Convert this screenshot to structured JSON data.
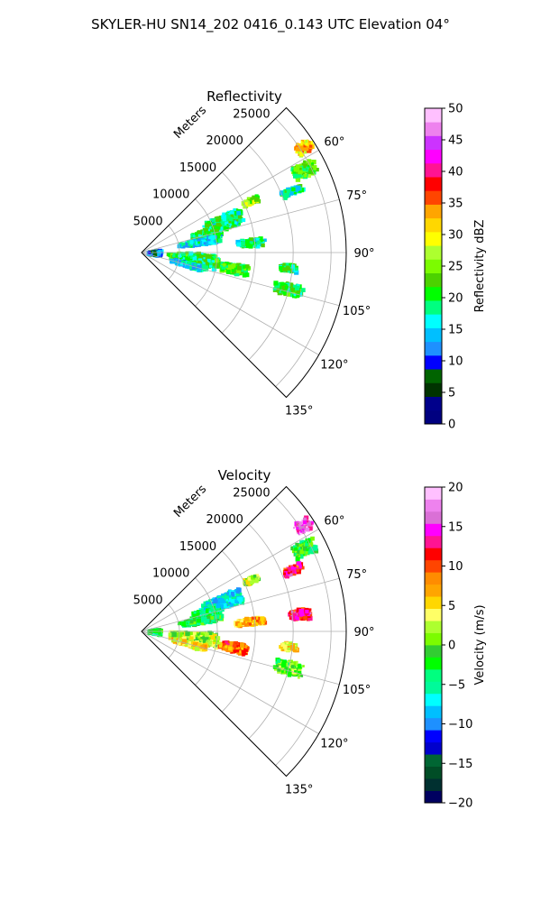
{
  "figure": {
    "suptitle": "SKYLER-HU  SN14_202  0416_0.143 UTC Elevation 04°"
  },
  "chart_data": [
    {
      "type": "heatmap",
      "subtype": "polar-sector",
      "title": "Reflectivity",
      "radial_axis_label": "Meters",
      "radial_ticks": [
        "5000",
        "10000",
        "15000",
        "20000",
        "25000"
      ],
      "radial_tick_values": [
        5000,
        10000,
        15000,
        20000,
        25000
      ],
      "rlim": [
        0,
        27000
      ],
      "angle_ticks": [
        "60°",
        "75°",
        "90°",
        "105°",
        "120°",
        "135°"
      ],
      "angle_tick_values": [
        60,
        75,
        90,
        105,
        120,
        135
      ],
      "theta_range": [
        45,
        135
      ],
      "grid": true,
      "colorbar": {
        "label": "Reflectivity dBZ",
        "ticks": [
          "0",
          "5",
          "10",
          "15",
          "20",
          "25",
          "30",
          "35",
          "40",
          "45",
          "50"
        ],
        "tick_values": [
          0,
          5,
          10,
          15,
          20,
          25,
          30,
          35,
          40,
          45,
          50
        ],
        "range": [
          0,
          50
        ],
        "position": "right"
      },
      "colors": [
        "#000080",
        "#00008b",
        "#003300",
        "#006400",
        "#0000ff",
        "#1e90ff",
        "#00bfff",
        "#00ffff",
        "#00ff80",
        "#00ff00",
        "#4cd200",
        "#7cfc00",
        "#adff2f",
        "#ffff00",
        "#ffd700",
        "#ffa500",
        "#ff4500",
        "#ff0000",
        "#ff1493",
        "#ff00ff",
        "#cc33ff",
        "#ee82ee",
        "#ffc0ff"
      ],
      "echo_regions": [
        {
          "az": 57,
          "r": 25500,
          "daz": 4,
          "dr": 2500,
          "value": 32
        },
        {
          "az": 63,
          "r": 24000,
          "daz": 5,
          "dr": 3500,
          "value": 22
        },
        {
          "az": 68,
          "r": 21500,
          "daz": 3,
          "dr": 3000,
          "value": 18
        },
        {
          "az": 65,
          "r": 16000,
          "daz": 3,
          "dr": 2500,
          "value": 25
        },
        {
          "az": 70,
          "r": 11500,
          "daz": 10,
          "dr": 5500,
          "value": 19
        },
        {
          "az": 74,
          "r": 9000,
          "daz": 8,
          "dr": 4500,
          "value": 20
        },
        {
          "az": 80,
          "r": 8000,
          "daz": 6,
          "dr": 6000,
          "value": 16
        },
        {
          "az": 85,
          "r": 14500,
          "daz": 4,
          "dr": 4000,
          "value": 18
        },
        {
          "az": 97,
          "r": 7000,
          "daz": 12,
          "dr": 7000,
          "value": 20
        },
        {
          "az": 100,
          "r": 12500,
          "daz": 6,
          "dr": 4000,
          "value": 22
        },
        {
          "az": 93,
          "r": 1800,
          "daz": 18,
          "dr": 1800,
          "value": 11
        },
        {
          "az": 105,
          "r": 6500,
          "daz": 6,
          "dr": 5000,
          "value": 15
        },
        {
          "az": 104,
          "r": 20000,
          "daz": 5,
          "dr": 4000,
          "value": 20
        },
        {
          "az": 96,
          "r": 19500,
          "daz": 3,
          "dr": 2500,
          "value": 19
        }
      ]
    },
    {
      "type": "heatmap",
      "subtype": "polar-sector",
      "title": "Velocity",
      "radial_axis_label": "Meters",
      "radial_ticks": [
        "5000",
        "10000",
        "15000",
        "20000",
        "25000"
      ],
      "radial_tick_values": [
        5000,
        10000,
        15000,
        20000,
        25000
      ],
      "rlim": [
        0,
        27000
      ],
      "angle_ticks": [
        "60°",
        "75°",
        "90°",
        "105°",
        "120°",
        "135°"
      ],
      "angle_tick_values": [
        60,
        75,
        90,
        105,
        120,
        135
      ],
      "theta_range": [
        45,
        135
      ],
      "grid": true,
      "colorbar": {
        "label": "Velocity (m/s)",
        "ticks": [
          "−20",
          "−15",
          "−10",
          "−5",
          "0",
          "5",
          "10",
          "15",
          "20"
        ],
        "tick_values": [
          -20,
          -15,
          -10,
          -5,
          0,
          5,
          10,
          15,
          20
        ],
        "range": [
          -20,
          20
        ],
        "position": "right"
      },
      "colors": [
        "#000060",
        "#003030",
        "#004d26",
        "#006633",
        "#0000cd",
        "#0000ff",
        "#1e90ff",
        "#00bfff",
        "#00ffff",
        "#00fa9a",
        "#00ff7f",
        "#00ff00",
        "#32cd32",
        "#7cfc00",
        "#adff2f",
        "#ffff66",
        "#ffd700",
        "#ffa500",
        "#ff8c00",
        "#ff4500",
        "#ff0000",
        "#ff1493",
        "#ff00ff",
        "#da70d6",
        "#ee82ee",
        "#ffc0ff"
      ],
      "echo_regions": [
        {
          "az": 57,
          "r": 25500,
          "daz": 4,
          "dr": 2500,
          "value": 16
        },
        {
          "az": 63,
          "r": 24000,
          "daz": 5,
          "dr": 3500,
          "value": -2
        },
        {
          "az": 68,
          "r": 21500,
          "daz": 3,
          "dr": 3000,
          "value": 12
        },
        {
          "az": 65,
          "r": 16000,
          "daz": 3,
          "dr": 2500,
          "value": 2
        },
        {
          "az": 70,
          "r": 11500,
          "daz": 10,
          "dr": 5500,
          "value": -7
        },
        {
          "az": 74,
          "r": 9000,
          "daz": 8,
          "dr": 4500,
          "value": -5
        },
        {
          "az": 80,
          "r": 8000,
          "daz": 6,
          "dr": 6000,
          "value": -3
        },
        {
          "az": 85,
          "r": 14500,
          "daz": 4,
          "dr": 4000,
          "value": 7
        },
        {
          "az": 84,
          "r": 21000,
          "daz": 4,
          "dr": 3000,
          "value": 12
        },
        {
          "az": 97,
          "r": 7000,
          "daz": 12,
          "dr": 7000,
          "value": 2
        },
        {
          "az": 100,
          "r": 12500,
          "daz": 6,
          "dr": 4000,
          "value": 9
        },
        {
          "az": 93,
          "r": 1800,
          "daz": 18,
          "dr": 1800,
          "value": -3
        },
        {
          "az": 105,
          "r": 6500,
          "daz": 6,
          "dr": 5000,
          "value": 5
        },
        {
          "az": 104,
          "r": 20000,
          "daz": 5,
          "dr": 4000,
          "value": 0
        },
        {
          "az": 96,
          "r": 19500,
          "daz": 3,
          "dr": 2500,
          "value": 5
        }
      ]
    }
  ]
}
